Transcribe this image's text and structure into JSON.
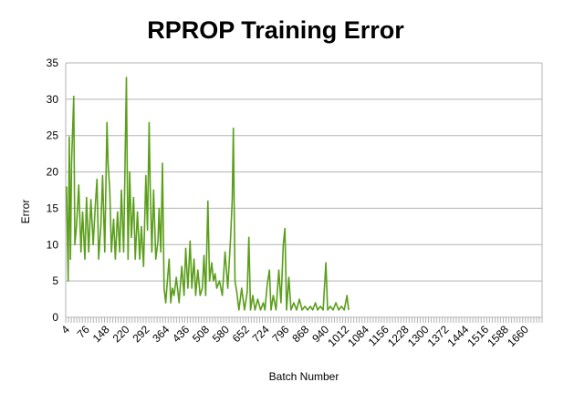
{
  "chart_data": {
    "type": "line",
    "title": "RPROP Training Error",
    "xlabel": "Batch Number",
    "ylabel": "Error",
    "ylim": [
      0,
      35
    ],
    "yticks": [
      0,
      5,
      10,
      15,
      20,
      25,
      30,
      35
    ],
    "xlim": [
      1,
      1720
    ],
    "xtick_labels": [
      "4",
      "76",
      "148",
      "220",
      "292",
      "364",
      "436",
      "508",
      "580",
      "652",
      "724",
      "796",
      "868",
      "940",
      "1012",
      "1084",
      "1156",
      "1228",
      "1300",
      "1372",
      "1444",
      "1516",
      "1588",
      "1660"
    ],
    "grid": true,
    "legend": "none",
    "color": "#5a9e1a",
    "series": [
      {
        "values": [
          [
            4,
            18
          ],
          [
            10,
            5
          ],
          [
            14,
            24.8
          ],
          [
            18,
            8
          ],
          [
            22,
            21.2
          ],
          [
            30,
            30.4
          ],
          [
            34,
            10
          ],
          [
            40,
            12.5
          ],
          [
            48,
            18.2
          ],
          [
            56,
            9
          ],
          [
            62,
            14.5
          ],
          [
            70,
            8
          ],
          [
            76,
            16.5
          ],
          [
            84,
            9
          ],
          [
            92,
            16.2
          ],
          [
            100,
            10
          ],
          [
            108,
            15.5
          ],
          [
            114,
            19
          ],
          [
            120,
            8
          ],
          [
            128,
            12.8
          ],
          [
            134,
            19.5
          ],
          [
            142,
            9
          ],
          [
            150,
            26.8
          ],
          [
            154,
            21
          ],
          [
            160,
            17.5
          ],
          [
            166,
            9
          ],
          [
            174,
            13.5
          ],
          [
            180,
            8
          ],
          [
            188,
            14.5
          ],
          [
            196,
            9
          ],
          [
            202,
            17.5
          ],
          [
            210,
            9
          ],
          [
            220,
            33
          ],
          [
            226,
            8
          ],
          [
            232,
            20
          ],
          [
            238,
            11
          ],
          [
            246,
            16.5
          ],
          [
            252,
            8
          ],
          [
            260,
            14.5
          ],
          [
            268,
            8
          ],
          [
            274,
            12.5
          ],
          [
            282,
            7
          ],
          [
            290,
            19.5
          ],
          [
            296,
            12
          ],
          [
            302,
            26.8
          ],
          [
            306,
            18
          ],
          [
            312,
            9
          ],
          [
            318,
            17.5
          ],
          [
            326,
            8
          ],
          [
            334,
            10.5
          ],
          [
            338,
            15
          ],
          [
            344,
            9
          ],
          [
            350,
            21.2
          ],
          [
            356,
            4
          ],
          [
            362,
            2
          ],
          [
            368,
            5
          ],
          [
            374,
            8
          ],
          [
            380,
            2
          ],
          [
            386,
            4
          ],
          [
            392,
            3
          ],
          [
            400,
            5.5
          ],
          [
            410,
            2
          ],
          [
            420,
            7
          ],
          [
            428,
            3
          ],
          [
            434,
            9.5
          ],
          [
            442,
            4
          ],
          [
            450,
            10.5
          ],
          [
            456,
            4
          ],
          [
            464,
            8
          ],
          [
            470,
            3
          ],
          [
            478,
            6.5
          ],
          [
            486,
            3
          ],
          [
            494,
            4
          ],
          [
            500,
            8.5
          ],
          [
            506,
            3
          ],
          [
            514,
            16
          ],
          [
            520,
            5
          ],
          [
            528,
            7.5
          ],
          [
            534,
            5
          ],
          [
            540,
            6
          ],
          [
            546,
            4
          ],
          [
            556,
            5
          ],
          [
            566,
            3
          ],
          [
            576,
            9
          ],
          [
            586,
            4
          ],
          [
            596,
            11
          ],
          [
            602,
            16.3
          ],
          [
            606,
            26
          ],
          [
            612,
            5
          ],
          [
            618,
            3.5
          ],
          [
            626,
            1
          ],
          [
            636,
            4
          ],
          [
            646,
            1
          ],
          [
            656,
            3.5
          ],
          [
            662,
            11
          ],
          [
            668,
            1
          ],
          [
            676,
            3
          ],
          [
            684,
            1
          ],
          [
            694,
            2.5
          ],
          [
            704,
            1
          ],
          [
            714,
            2
          ],
          [
            720,
            1
          ],
          [
            728,
            4.5
          ],
          [
            736,
            6.5
          ],
          [
            742,
            1
          ],
          [
            750,
            3
          ],
          [
            760,
            1
          ],
          [
            770,
            6.5
          ],
          [
            778,
            2
          ],
          [
            786,
            10
          ],
          [
            792,
            12.2
          ],
          [
            798,
            1
          ],
          [
            806,
            5.5
          ],
          [
            814,
            1
          ],
          [
            824,
            2
          ],
          [
            834,
            1
          ],
          [
            844,
            2.5
          ],
          [
            854,
            1
          ],
          [
            864,
            1.5
          ],
          [
            874,
            1
          ],
          [
            884,
            1.5
          ],
          [
            892,
            1
          ],
          [
            902,
            2
          ],
          [
            910,
            1
          ],
          [
            920,
            1.5
          ],
          [
            930,
            1
          ],
          [
            940,
            7.5
          ],
          [
            946,
            1
          ],
          [
            956,
            1.5
          ],
          [
            966,
            1
          ],
          [
            976,
            2
          ],
          [
            986,
            1
          ],
          [
            996,
            1.5
          ],
          [
            1006,
            1
          ],
          [
            1016,
            3
          ],
          [
            1022,
            1
          ]
        ]
      }
    ]
  }
}
